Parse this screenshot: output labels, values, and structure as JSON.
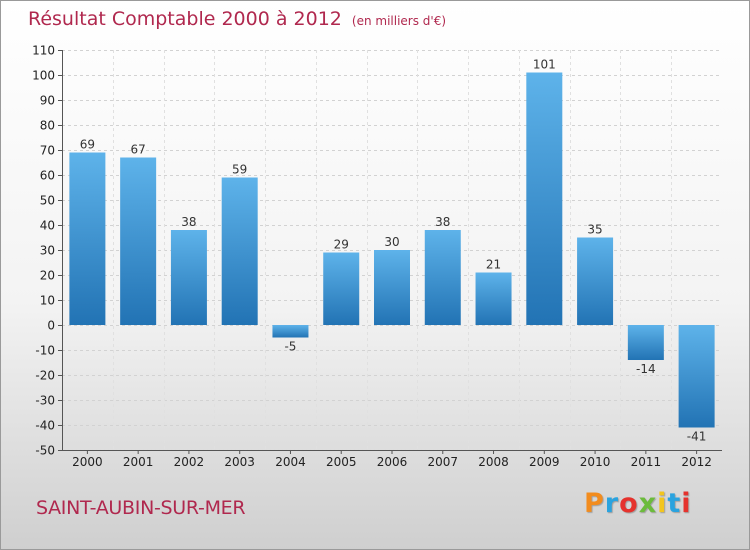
{
  "header": {
    "title": "Résultat Comptable 2000 à 2012",
    "subtitle": "(en milliers d'€)"
  },
  "footer": {
    "commune": "SAINT-AUBIN-SUR-MER",
    "logo": "Proxiti",
    "logo_colors": [
      "#f28c1e",
      "#2aa3df",
      "#e5322d",
      "#6cbb3c",
      "#f2c51e",
      "#2aa3df",
      "#e5322d"
    ]
  },
  "colors": {
    "bar_top": "#5eb3ea",
    "bar_bottom": "#2273b4",
    "title": "#b0284e"
  },
  "chart_data": {
    "type": "bar",
    "title": "Résultat Comptable 2000 à 2012",
    "subtitle": "(en milliers d'€)",
    "xlabel": "",
    "ylabel": "",
    "categories": [
      "2000",
      "2001",
      "2002",
      "2003",
      "2004",
      "2005",
      "2006",
      "2007",
      "2008",
      "2009",
      "2010",
      "2011",
      "2012"
    ],
    "values": [
      69,
      67,
      38,
      59,
      -5,
      29,
      30,
      38,
      21,
      101,
      35,
      -14,
      -41
    ],
    "data_labels": [
      "69",
      "67",
      "38",
      "59",
      "-5",
      "29",
      "30",
      "38",
      "21",
      "101",
      "35",
      "-14",
      "-41"
    ],
    "ylim": [
      -50,
      110
    ],
    "yticks": [
      110,
      100,
      90,
      80,
      70,
      60,
      50,
      40,
      30,
      20,
      10,
      0,
      -10,
      -20,
      -30,
      -40,
      -50
    ],
    "grid": true,
    "legend": "none"
  }
}
